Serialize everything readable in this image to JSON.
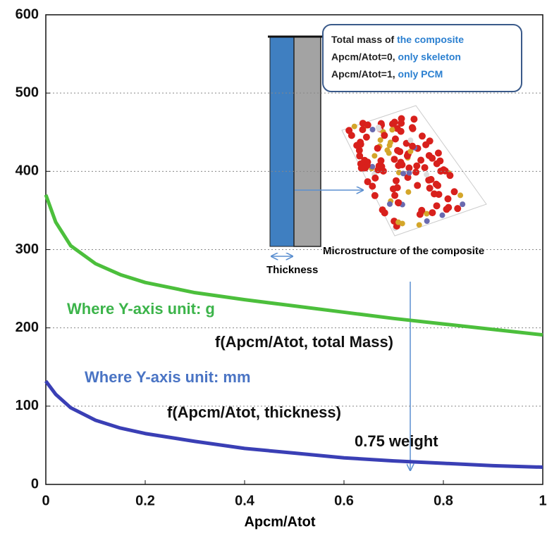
{
  "chart_data": {
    "type": "line",
    "x": [
      0,
      0.02,
      0.05,
      0.1,
      0.15,
      0.2,
      0.3,
      0.4,
      0.5,
      0.6,
      0.7,
      0.8,
      0.9,
      1
    ],
    "series": [
      {
        "color": "#4cbf3c",
        "values": [
          370,
          335,
          305,
          282,
          268,
          258,
          245,
          236,
          228,
          220,
          212,
          205,
          198,
          191
        ]
      },
      {
        "color": "#3a3fb5",
        "values": [
          132,
          115,
          98,
          82,
          72,
          65,
          55,
          46,
          40,
          34,
          30,
          27,
          24,
          22
        ]
      }
    ],
    "x_label": "Apcm/Atot",
    "xlim": [
      0,
      1
    ],
    "xticks": [
      0,
      0.2,
      0.4,
      0.6,
      0.8,
      1
    ],
    "ylim": [
      0,
      600
    ],
    "yticks": [
      0,
      100,
      200,
      300,
      400,
      500,
      600
    ],
    "grid": true,
    "annotations": [
      {
        "text": "Where Y-axis unit: g",
        "color": "#3cb44a"
      },
      {
        "text": "f(Apcm/Atot, total Mass)",
        "color": "#111111"
      },
      {
        "text": "Where Y-axis unit: mm",
        "color": "#4a74c4"
      },
      {
        "text": "f(Apcm/Atot, thickness)",
        "color": "#111111"
      },
      {
        "text": "0.75 weight",
        "color": "#111111"
      }
    ],
    "inset": {
      "thickness_label": "Thickness",
      "microstructure_label": "Microstructure of the composite",
      "callout_lines": [
        {
          "text": "Total mass of ",
          "accent": "the composite"
        },
        {
          "text": "Apcm/Atot=0, ",
          "accent": "only skeleton"
        },
        {
          "text": "Apcm/Atot=1, ",
          "accent": "only PCM"
        }
      ],
      "accent_color": "#2a7fd0"
    }
  }
}
